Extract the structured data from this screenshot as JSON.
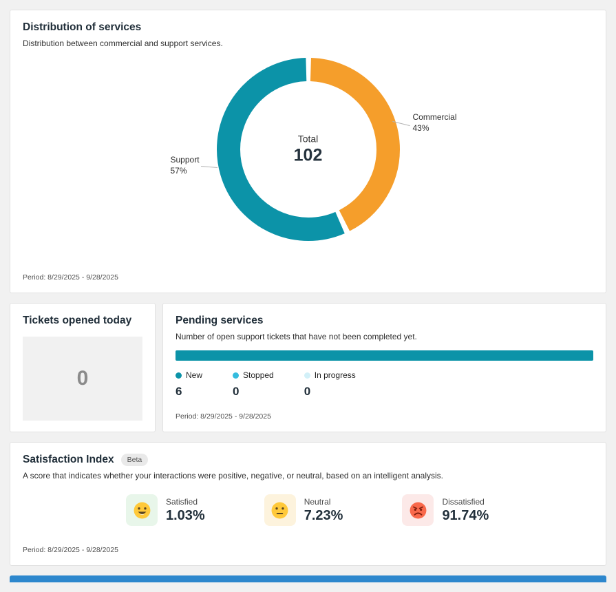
{
  "chart_data": [
    {
      "type": "pie",
      "variant": "donut",
      "title": "Distribution of services",
      "center_label": "Total",
      "center_value": "102",
      "legend_position": "callout-labels",
      "segments": [
        {
          "label": "Commercial",
          "value": 43,
          "pct_label": "43%",
          "color": "#F59E2B"
        },
        {
          "label": "Support",
          "value": 57,
          "pct_label": "57%",
          "color": "#0C93A8"
        }
      ]
    },
    {
      "type": "bar",
      "variant": "horizontal-stacked",
      "title": "Pending services",
      "series": [
        {
          "name": "New",
          "value": 6,
          "color": "#0C93A8"
        },
        {
          "name": "Stopped",
          "value": 0,
          "color": "#35BCDE"
        },
        {
          "name": "In progress",
          "value": 0,
          "color": "#D2F0F8"
        }
      ]
    }
  ],
  "distribution_card": {
    "title": "Distribution of services",
    "subtitle": "Distribution between commercial and support services.",
    "period": "Period: 8/29/2025 - 9/28/2025"
  },
  "tickets_card": {
    "title": "Tickets opened today",
    "value": "0"
  },
  "pending_card": {
    "title": "Pending services",
    "subtitle": "Number of open support tickets that have not been completed yet.",
    "period": "Period: 8/29/2025 - 9/28/2025"
  },
  "satisfaction_card": {
    "title": "Satisfaction Index",
    "badge": "Beta",
    "subtitle": "A score that indicates whether your interactions were positive, negative, or neutral, based on an intelligent analysis.",
    "period": "Period: 8/29/2025 - 9/28/2025",
    "items": [
      {
        "label": "Satisfied",
        "value": "1.03%",
        "emoji": "😄",
        "icon": "grinning-face-icon",
        "box_color": "#E8F6EA"
      },
      {
        "label": "Neutral",
        "value": "7.23%",
        "emoji": "😐",
        "icon": "neutral-face-icon",
        "box_color": "#FDF3DD"
      },
      {
        "label": "Dissatisfied",
        "value": "91.74%",
        "emoji": "😠",
        "icon": "angry-face-icon",
        "box_color": "#FCE9E8"
      }
    ]
  },
  "colors": {
    "page_background": "#f1f1f1",
    "card_border": "#e2e2e2",
    "teal": "#0C93A8",
    "orange": "#F59E2B",
    "cyan": "#35BCDE",
    "pale_cyan": "#D2F0F8",
    "next_card_blue": "#2d87cd"
  }
}
